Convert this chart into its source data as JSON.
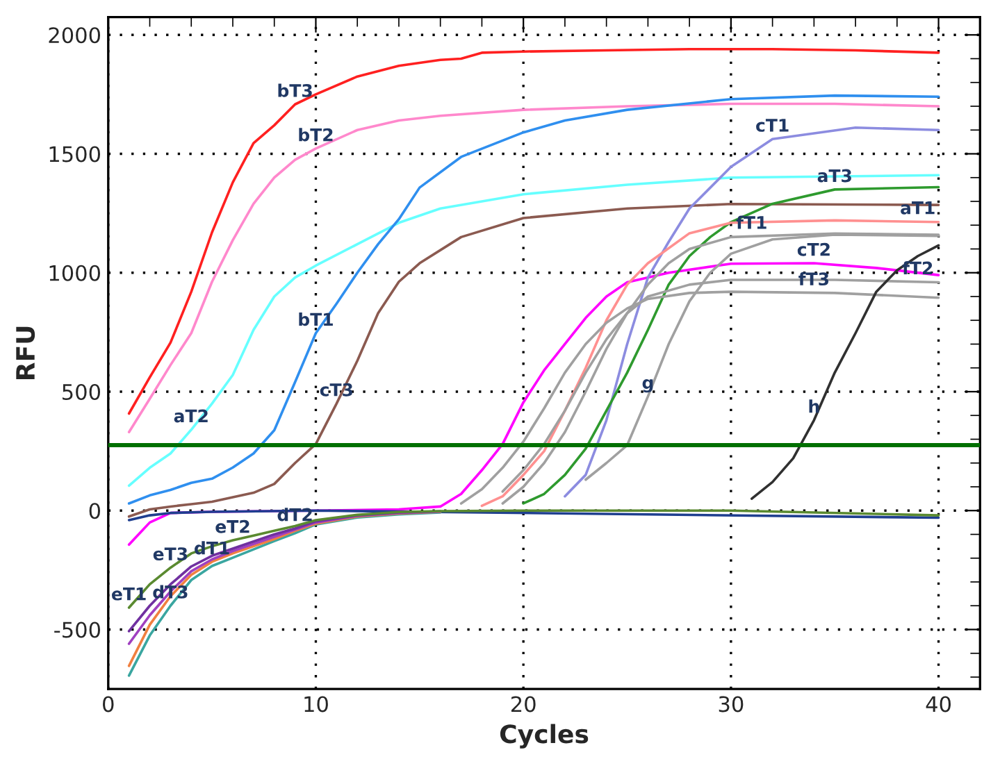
{
  "chart_data": {
    "type": "line",
    "xlabel": "Cycles",
    "ylabel": "RFU",
    "xlim": [
      0,
      42
    ],
    "ylim": [
      -750,
      2075
    ],
    "xticks": [
      0,
      10,
      20,
      30,
      40
    ],
    "yticks": [
      -500,
      0,
      500,
      1000,
      1500,
      2000
    ],
    "grid": true,
    "marker": "none",
    "line_style": "solid",
    "ref_lines": [
      {
        "axis": "y",
        "value": 275,
        "label": null,
        "color": "#007000",
        "line_style": "solid"
      }
    ],
    "series": [
      {
        "color": "#ff2020",
        "x": [
          1,
          2,
          3,
          4,
          5,
          6,
          7,
          8,
          9,
          10,
          12,
          14,
          16,
          17,
          18,
          20,
          24,
          28,
          32,
          36,
          40
        ],
        "values": [
          408,
          560,
          706,
          920,
          1170,
          1380,
          1545,
          1620,
          1708,
          1750,
          1825,
          1870,
          1895,
          1900,
          1925,
          1930,
          1935,
          1940,
          1940,
          1935,
          1925
        ]
      },
      {
        "color": "#ff88cc",
        "x": [
          1,
          2,
          3,
          4,
          5,
          6,
          7,
          8,
          9,
          10,
          12,
          14,
          16,
          20,
          25,
          30,
          35,
          40
        ],
        "values": [
          330,
          470,
          612,
          746,
          962,
          1137,
          1290,
          1400,
          1475,
          1522,
          1600,
          1640,
          1660,
          1685,
          1700,
          1710,
          1710,
          1700
        ]
      },
      {
        "color": "#66ffff",
        "x": [
          1,
          2,
          3,
          4,
          5,
          6,
          7,
          8,
          9,
          10,
          12,
          14,
          16,
          20,
          25,
          30,
          40
        ],
        "values": [
          105,
          180,
          240,
          340,
          450,
          570,
          760,
          900,
          980,
          1030,
          1120,
          1210,
          1270,
          1330,
          1370,
          1400,
          1410
        ]
      },
      {
        "color": "#2f8fef",
        "x": [
          1,
          2,
          3,
          4,
          5,
          6,
          7,
          8,
          9,
          10,
          11,
          12,
          13,
          14,
          15,
          17,
          20,
          22,
          25,
          30,
          35,
          40
        ],
        "values": [
          30,
          64,
          87,
          117,
          134,
          181,
          240,
          338,
          540,
          746,
          870,
          1000,
          1120,
          1225,
          1358,
          1487,
          1590,
          1640,
          1685,
          1730,
          1745,
          1740
        ]
      },
      {
        "color": "#8b5a50",
        "x": [
          1,
          2,
          3,
          4,
          5,
          6,
          7,
          8,
          9,
          10,
          11,
          12,
          13,
          14,
          15,
          17,
          20,
          25,
          30,
          40
        ],
        "values": [
          -25,
          5,
          17,
          27,
          37,
          56,
          75,
          112,
          200,
          280,
          450,
          630,
          830,
          962,
          1040,
          1150,
          1230,
          1270,
          1289,
          1285
        ]
      },
      {
        "color": "#ff00ff",
        "x": [
          1,
          2,
          3,
          5,
          10,
          14,
          16,
          17,
          18,
          19,
          20,
          21,
          22,
          23,
          24,
          25,
          27,
          30,
          34,
          37,
          40
        ],
        "values": [
          -143,
          -50,
          -10,
          -5,
          0,
          5,
          17,
          70,
          170,
          280,
          455,
          590,
          700,
          810,
          900,
          960,
          1000,
          1038,
          1040,
          1020,
          990
        ]
      },
      {
        "color": "#8c8ce0",
        "x": [
          22,
          23,
          24,
          25,
          26,
          27,
          28,
          30,
          32,
          36,
          40
        ],
        "values": [
          60,
          150,
          380,
          700,
          980,
          1130,
          1270,
          1445,
          1562,
          1610,
          1600
        ]
      },
      {
        "color": "#2e9a2e",
        "x": [
          20,
          21,
          22,
          23,
          24,
          25,
          26,
          27,
          28,
          29,
          30,
          32,
          35,
          40
        ],
        "values": [
          30,
          70,
          150,
          260,
          420,
          580,
          760,
          950,
          1070,
          1150,
          1213,
          1290,
          1350,
          1360
        ]
      },
      {
        "color": "#ff9090",
        "x": [
          18,
          19,
          20,
          21,
          22,
          23,
          24,
          25,
          26,
          28,
          30,
          35,
          40
        ],
        "values": [
          20,
          60,
          150,
          250,
          420,
          600,
          800,
          950,
          1040,
          1166,
          1210,
          1220,
          1213
        ]
      },
      {
        "color": "#a0a0a0",
        "x": [
          17,
          18,
          19,
          20,
          21,
          22,
          23,
          24,
          25,
          26,
          28,
          30,
          35,
          40
        ],
        "values": [
          30,
          90,
          180,
          290,
          430,
          580,
          700,
          790,
          850,
          890,
          915,
          920,
          915,
          895
        ]
      },
      {
        "color": "#a0a0a0",
        "x": [
          19,
          20,
          21,
          22,
          23,
          24,
          25,
          26,
          28,
          30,
          35,
          40
        ],
        "values": [
          80,
          170,
          280,
          420,
          580,
          720,
          830,
          900,
          950,
          970,
          970,
          960
        ]
      },
      {
        "color": "#a0a0a0",
        "x": [
          19,
          20,
          21,
          22,
          23,
          24,
          25,
          26,
          27,
          28,
          30,
          35,
          40
        ],
        "values": [
          30,
          100,
          200,
          330,
          500,
          680,
          830,
          950,
          1040,
          1100,
          1150,
          1165,
          1160
        ]
      },
      {
        "color": "#a0a0a0",
        "x": [
          23,
          24,
          25,
          26,
          27,
          28,
          29,
          30,
          32,
          35,
          40
        ],
        "values": [
          130,
          200,
          275,
          480,
          700,
          880,
          1000,
          1080,
          1140,
          1160,
          1155
        ]
      },
      {
        "color": "#303030",
        "x": [
          31,
          32,
          33,
          34,
          35,
          36,
          37,
          38,
          39,
          40
        ],
        "values": [
          50,
          120,
          220,
          380,
          580,
          746,
          920,
          1010,
          1070,
          1115
        ]
      },
      {
        "color": "#1f3f8f",
        "x": [
          1,
          2,
          3,
          5,
          10,
          40
        ],
        "values": [
          -40,
          -20,
          -10,
          -5,
          0,
          -30
        ]
      },
      {
        "color": "#3aa6a0",
        "x": [
          1,
          2,
          3,
          4,
          5,
          6,
          7,
          8,
          9,
          10,
          12,
          14,
          16
        ],
        "values": [
          -694,
          -525,
          -400,
          -292,
          -233,
          -198,
          -163,
          -128,
          -95,
          -58,
          -29,
          -16,
          -8
        ]
      },
      {
        "color": "#f08040",
        "x": [
          1,
          2,
          3,
          4,
          5,
          6,
          7,
          8,
          9,
          10,
          12,
          14,
          16
        ],
        "values": [
          -653,
          -480,
          -360,
          -270,
          -215,
          -180,
          -150,
          -120,
          -85,
          -55,
          -25,
          -12,
          -5
        ]
      },
      {
        "color": "#a040c0",
        "x": [
          1,
          2,
          3,
          4,
          5,
          6,
          7,
          8,
          9,
          10,
          12,
          14,
          16
        ],
        "values": [
          -560,
          -440,
          -340,
          -255,
          -205,
          -170,
          -140,
          -110,
          -80,
          -50,
          -22,
          -10,
          -4
        ]
      },
      {
        "color": "#7030a0",
        "x": [
          1,
          2,
          3,
          4,
          5,
          6,
          7,
          8,
          9,
          10,
          12,
          14,
          16
        ],
        "values": [
          -507,
          -400,
          -310,
          -235,
          -190,
          -160,
          -130,
          -100,
          -75,
          -45,
          -20,
          -8,
          -3
        ]
      },
      {
        "color": "#5a8a30",
        "x": [
          1,
          2,
          3,
          4,
          5,
          6,
          7,
          8,
          9,
          10,
          12,
          14,
          16,
          20,
          30,
          40
        ],
        "values": [
          -408,
          -310,
          -240,
          -180,
          -150,
          -125,
          -105,
          -85,
          -65,
          -40,
          -18,
          -6,
          -2,
          0,
          0,
          -20
        ]
      }
    ],
    "annotations": [
      {
        "text": "bT3",
        "x": 9,
        "y": 1708
      },
      {
        "text": "bT2",
        "x": 10,
        "y": 1522
      },
      {
        "text": "bT1",
        "x": 10,
        "y": 746
      },
      {
        "text": "cT3",
        "x": 11,
        "y": 450
      },
      {
        "text": "aT2",
        "x": 4,
        "y": 340
      },
      {
        "text": "cT1",
        "x": 32,
        "y": 1562
      },
      {
        "text": "aT3",
        "x": 35,
        "y": 1350
      },
      {
        "text": "aT1",
        "x": 39,
        "y": 1215
      },
      {
        "text": "fT1",
        "x": 31,
        "y": 1153
      },
      {
        "text": "cT2",
        "x": 34,
        "y": 1040
      },
      {
        "text": "fT2",
        "x": 39,
        "y": 962
      },
      {
        "text": "fT3",
        "x": 34,
        "y": 916
      },
      {
        "text": "g",
        "x": 26,
        "y": 480
      },
      {
        "text": "h",
        "x": 34,
        "y": 380
      },
      {
        "text": "eT2",
        "x": 6,
        "y": -125
      },
      {
        "text": "eT3",
        "x": 3,
        "y": -240
      },
      {
        "text": "eT1",
        "x": 1,
        "y": -408
      },
      {
        "text": "dT2",
        "x": 9,
        "y": -75
      },
      {
        "text": "dT1",
        "x": 5,
        "y": -215
      },
      {
        "text": "dT3",
        "x": 3,
        "y": -400
      }
    ]
  }
}
